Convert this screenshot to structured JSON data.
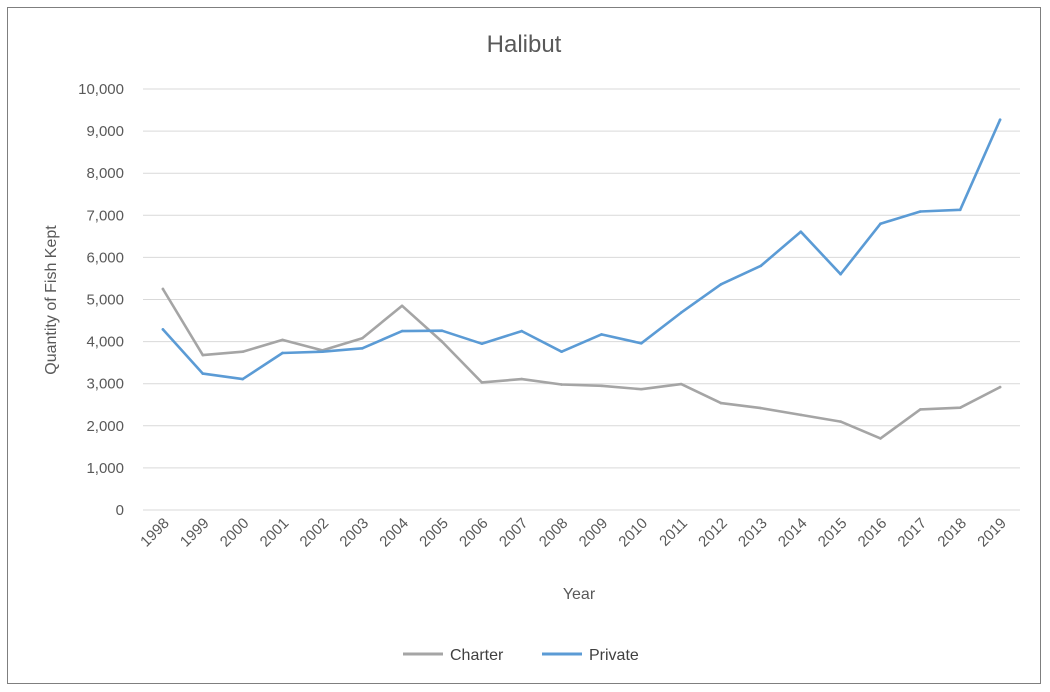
{
  "chart_data": {
    "type": "line",
    "title": "Halibut",
    "xlabel": "Year",
    "ylabel": "Quantity of Fish Kept",
    "ylim": [
      0,
      10000
    ],
    "ytick_step": 1000,
    "y_tick_labels": [
      "0",
      "1,000",
      "2,000",
      "3,000",
      "4,000",
      "5,000",
      "6,000",
      "7,000",
      "8,000",
      "9,000",
      "10,000"
    ],
    "grid": true,
    "legend_position": "bottom",
    "categories": [
      "1998",
      "1999",
      "2000",
      "2001",
      "2002",
      "2003",
      "2004",
      "2005",
      "2006",
      "2007",
      "2008",
      "2009",
      "2010",
      "2011",
      "2012",
      "2013",
      "2014",
      "2015",
      "2016",
      "2017",
      "2018",
      "2019"
    ],
    "series": [
      {
        "name": "Charter",
        "color": "#a5a5a5",
        "values": [
          5250,
          3680,
          3760,
          4040,
          3790,
          4080,
          4850,
          4000,
          3030,
          3110,
          2980,
          2950,
          2870,
          2990,
          2540,
          2420,
          2260,
          2100,
          1700,
          2390,
          2430,
          2920
        ]
      },
      {
        "name": "Private",
        "color": "#5b9bd5",
        "values": [
          4290,
          3240,
          3110,
          3730,
          3760,
          3840,
          4250,
          4260,
          3950,
          4250,
          3760,
          4170,
          3960,
          4690,
          5360,
          5800,
          6610,
          5600,
          6800,
          7090,
          7130,
          9270
        ]
      }
    ]
  }
}
